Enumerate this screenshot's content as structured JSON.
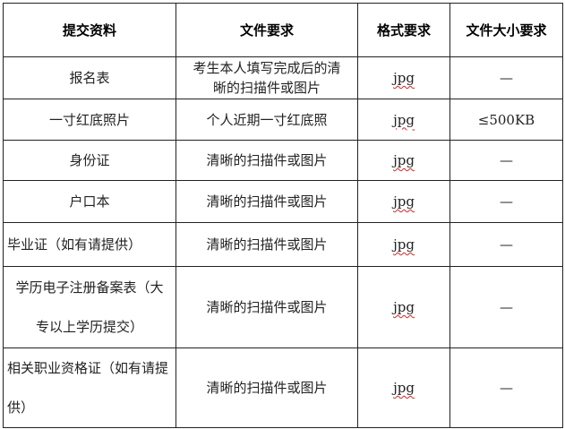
{
  "headers": [
    "提交资料",
    "文件要求",
    "格式要求",
    "文件大小要求"
  ],
  "rows": [
    {
      "item": "报名表",
      "requirement": "考生本人填写完成后的清晰的扫描件或图片",
      "format": "jpg",
      "size": "—"
    },
    {
      "item": "一寸红底照片",
      "requirement": "个人近期一寸红底照",
      "format": "jpg",
      "size": "≤500KB"
    },
    {
      "item": "身份证",
      "requirement": "清晰的扫描件或图片",
      "format": "jpg",
      "size": "—"
    },
    {
      "item": "户口本",
      "requirement": "清晰的扫描件或图片",
      "format": "jpg",
      "size": "—"
    },
    {
      "item": "毕业证（如有请提供）",
      "requirement": "清晰的扫描件或图片",
      "format": "jpg",
      "size": "—"
    },
    {
      "item": "学历电子注册备案表（大专以上学历提交）",
      "requirement": "清晰的扫描件或图片",
      "format": "jpg",
      "size": "—"
    },
    {
      "item": "相关职业资格证（如有请提供）",
      "requirement": "清晰的扫描件或图片",
      "format": "jpg",
      "size": "—"
    }
  ]
}
